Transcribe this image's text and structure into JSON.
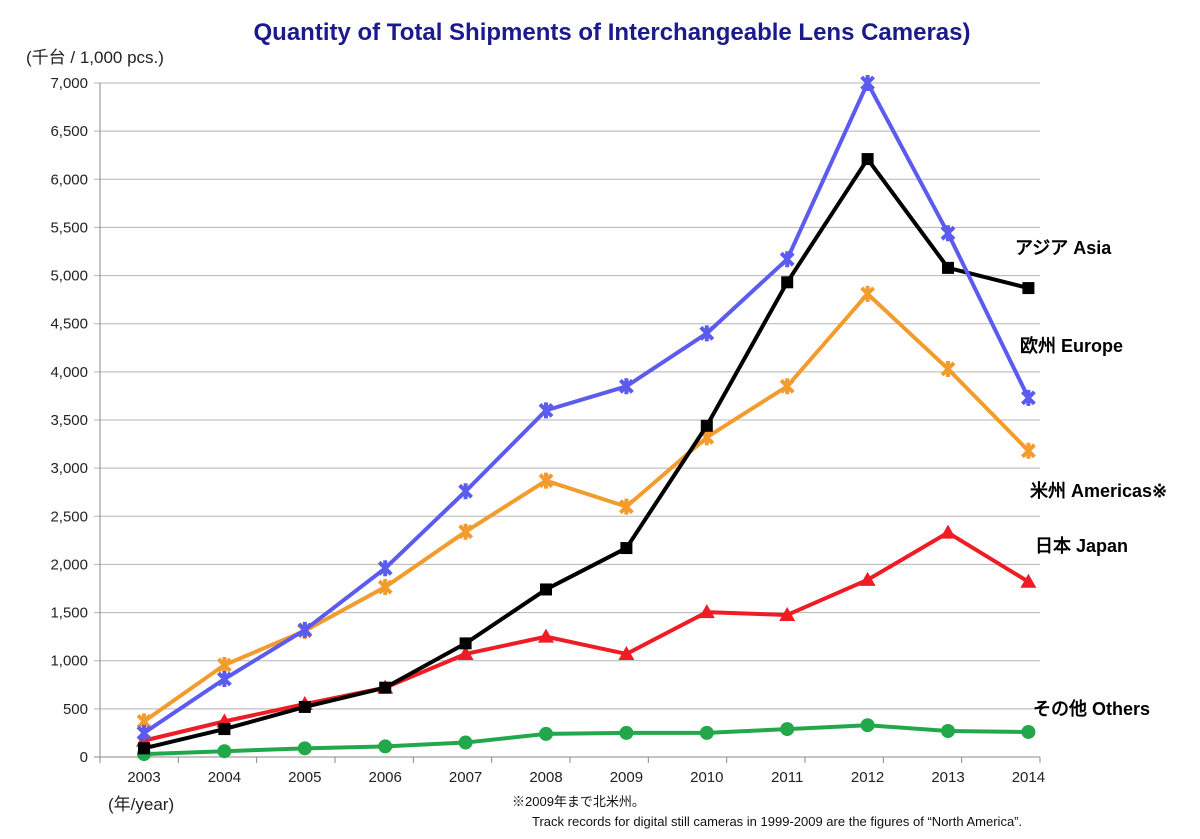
{
  "chart_data": {
    "type": "line",
    "title": "Quantity of Total Shipments of Interchangeable Lens Cameras)",
    "ylabel": "(千台 / 1,000 pcs.)",
    "xlabel": "(年/year)",
    "ylim": [
      0,
      7000
    ],
    "yticks": [
      0,
      500,
      1000,
      1500,
      2000,
      2500,
      3000,
      3500,
      4000,
      4500,
      5000,
      5500,
      6000,
      6500,
      7000
    ],
    "ytick_labels": [
      "0",
      "500",
      "1,000",
      "1,500",
      "2,000",
      "2,500",
      "3,000",
      "3,500",
      "4,000",
      "4,500",
      "5,000",
      "5,500",
      "6,000",
      "6,500",
      "7,000"
    ],
    "grid": true,
    "categories": [
      "2003",
      "2004",
      "2005",
      "2006",
      "2007",
      "2008",
      "2009",
      "2010",
      "2011",
      "2012",
      "2013",
      "2014"
    ],
    "series": [
      {
        "name": "アジア  Asia",
        "color": "#000000",
        "marker": "square",
        "values": [
          90,
          290,
          520,
          720,
          1180,
          1740,
          2170,
          3440,
          4930,
          6210,
          5080,
          4870
        ]
      },
      {
        "name": "欧州   Europe",
        "color": "#5b5bf0",
        "marker": "star",
        "values": [
          250,
          810,
          1320,
          1960,
          2760,
          3600,
          3850,
          4400,
          5170,
          7000,
          5440,
          3730
        ]
      },
      {
        "name": "米州   Americas※",
        "color": "#f39c2e",
        "marker": "star",
        "values": [
          370,
          955,
          1310,
          1765,
          2340,
          2870,
          2600,
          3320,
          3850,
          4810,
          4030,
          3180
        ]
      },
      {
        "name": "日本  Japan",
        "color": "#ee1c25",
        "marker": "triangle",
        "values": [
          170,
          370,
          550,
          720,
          1070,
          1250,
          1070,
          1505,
          1475,
          1840,
          2330,
          1820
        ]
      },
      {
        "name": "その他  Others",
        "color": "#22a84a",
        "marker": "circle",
        "values": [
          30,
          60,
          90,
          110,
          150,
          240,
          250,
          250,
          290,
          330,
          270,
          260
        ]
      }
    ],
    "notes": [
      "※2009年まで北米州。",
      "Track records for digital still cameras in 1999-2009 are the figures of “North America”."
    ]
  }
}
